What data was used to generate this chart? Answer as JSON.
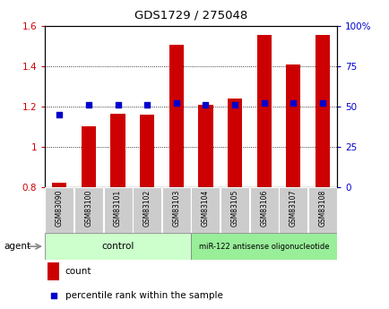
{
  "title": "GDS1729 / 275048",
  "samples": [
    "GSM83090",
    "GSM83100",
    "GSM83101",
    "GSM83102",
    "GSM83103",
    "GSM83104",
    "GSM83105",
    "GSM83106",
    "GSM83107",
    "GSM83108"
  ],
  "counts": [
    0.82,
    1.1,
    1.165,
    1.16,
    1.51,
    1.21,
    1.24,
    1.555,
    1.41,
    1.555
  ],
  "percentiles": [
    45,
    51,
    51,
    51,
    52,
    51,
    51,
    52,
    52,
    52
  ],
  "bar_color": "#cc0000",
  "dot_color": "#0000cc",
  "ylim_left": [
    0.8,
    1.6
  ],
  "ylim_right": [
    0,
    100
  ],
  "yticks_left": [
    0.8,
    1.0,
    1.2,
    1.4,
    1.6
  ],
  "ytick_labels_left": [
    "0.8",
    "1",
    "1.2",
    "1.4",
    "1.6"
  ],
  "yticks_right": [
    0,
    25,
    50,
    75,
    100
  ],
  "ytick_labels_right": [
    "0",
    "25",
    "50",
    "75",
    "100%"
  ],
  "control_group_count": 5,
  "treatment_group_count": 5,
  "control_label": "control",
  "treatment_label": "miR-122 antisense oligonucleotide",
  "agent_label": "agent",
  "legend_count_label": "count",
  "legend_pct_label": "percentile rank within the sample",
  "control_bg": "#ccffcc",
  "treatment_bg": "#99ee99",
  "xticklabel_bg": "#cccccc",
  "plot_bg": "#ffffff",
  "bar_width": 0.5,
  "bar_bottom": 0.8,
  "grid_yticks": [
    1.0,
    1.2,
    1.4
  ]
}
